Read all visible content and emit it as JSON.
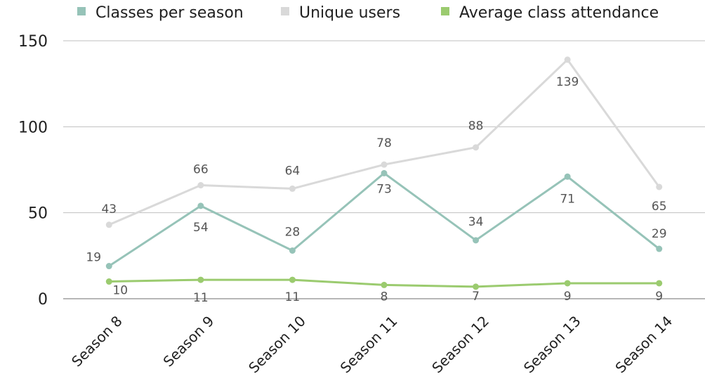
{
  "chart_data": {
    "type": "line",
    "title": "",
    "xlabel": "",
    "ylabel": "",
    "ylim": [
      0,
      150
    ],
    "yticks": [
      "0",
      "50",
      "100",
      "150"
    ],
    "grid": true,
    "legend_position": "top",
    "categories": [
      "Season 8",
      "Season 9",
      "Season 10",
      "Season 11",
      "Season 12",
      "Season 13",
      "Season 14"
    ],
    "series": [
      {
        "name": "Classes per season",
        "color": "#96c3b8",
        "values": [
          19,
          54,
          28,
          73,
          34,
          71,
          29
        ],
        "labels": [
          "19",
          "54",
          "28",
          "73",
          "34",
          "71",
          "29"
        ]
      },
      {
        "name": "Unique users",
        "color": "#d9d9d9",
        "values": [
          43,
          66,
          64,
          78,
          88,
          139,
          65
        ],
        "labels": [
          "43",
          "66",
          "64",
          "78",
          "88",
          "139",
          "65"
        ]
      },
      {
        "name": "Average class attendance",
        "color": "#9bcb6f",
        "values": [
          10,
          11,
          11,
          8,
          7,
          9,
          9
        ],
        "labels": [
          "10",
          "11",
          "11",
          "8",
          "7",
          "9",
          "9"
        ]
      }
    ]
  }
}
